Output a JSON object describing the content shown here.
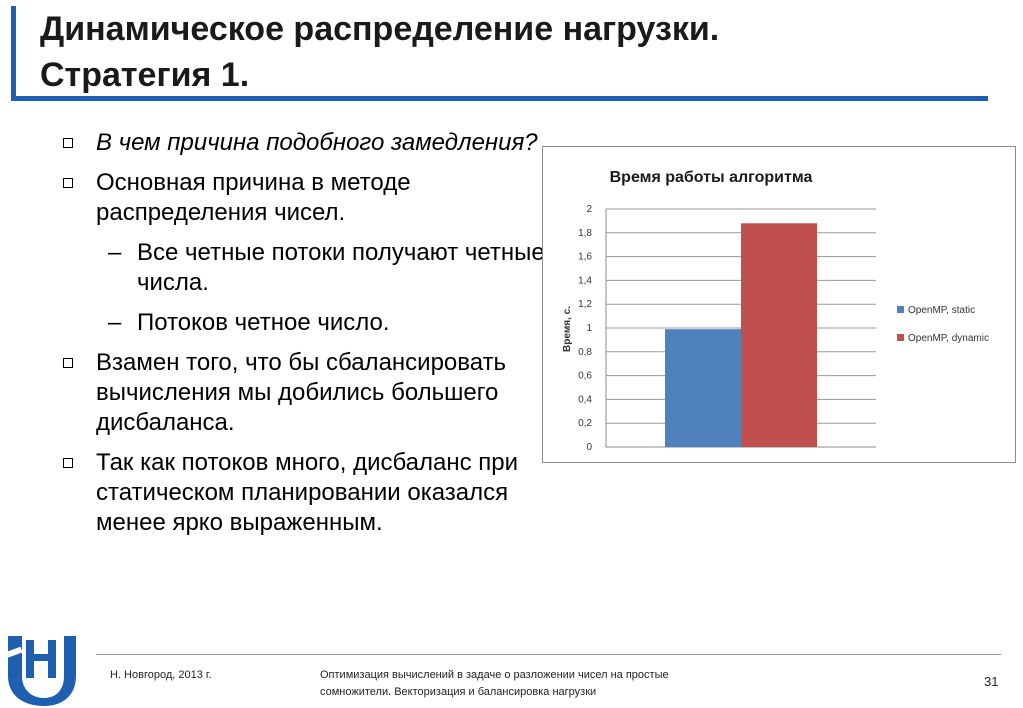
{
  "slide": {
    "title_line1": "Динамическое распределение нагрузки.",
    "title_line2": "Стратегия 1."
  },
  "bullets": [
    {
      "text": "В чем причина подобного замедления?"
    },
    {
      "text": "Основная причина в методе распределения чисел."
    },
    {
      "text": "Все четные потоки получают четные числа."
    },
    {
      "text": "Потоков четное число."
    },
    {
      "text": "Взамен того, что бы сбалансировать вычисления мы добились большего дисбаланса."
    },
    {
      "text": "Так как потоков много, дисбаланс при статическом планировании оказался менее ярко выраженным."
    }
  ],
  "chart_data": {
    "type": "bar",
    "title": "Время работы алгоритма",
    "ylabel": "Время, с.",
    "xlabel": "",
    "ylim": [
      0,
      2
    ],
    "yticks": [
      "0",
      "0,2",
      "0,4",
      "0,6",
      "0,8",
      "1",
      "1,2",
      "1,4",
      "1,6",
      "1,8",
      "2"
    ],
    "grid": true,
    "legend_position": "right",
    "series": [
      {
        "name": "OpenMP, static",
        "value": 0.99,
        "color": "#4f81bd"
      },
      {
        "name": "OpenMP, dynamic",
        "value": 1.88,
        "color": "#c0504d"
      }
    ]
  },
  "footer": {
    "city": "Н. Новгород, 2013 г.",
    "desc_line1": "Оптимизация вычислений в задаче о разложении чисел на простые",
    "desc_line2": "сомножители. Векторизация и балансировка нагрузки",
    "page": "31"
  }
}
